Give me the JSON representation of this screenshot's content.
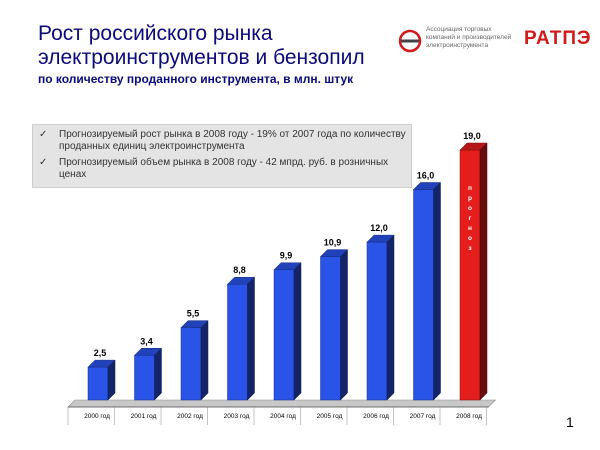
{
  "header": {
    "title": "Рост российского рынка электроинструментов и бензопил",
    "subtitle": "по количеству проданного инструмента, в млн. штук"
  },
  "logo": {
    "text": "Ассоциация торговых компаний и производителей электроинструмента",
    "brand": "РАТПЭ"
  },
  "notes": [
    "Прогнозируемый рост рынка в 2008 году - 19% от 2007 года по количеству проданных единиц электроинструмента",
    "Прогнозируемый объем рынка в 2008 году - 42 мпрд. руб.  в розничных ценах"
  ],
  "page_number": "1",
  "colors": {
    "bar": "#2a53e8",
    "highlight": "#e41d1d",
    "title": "#0a0a7a"
  },
  "chart_data": {
    "type": "bar",
    "categories": [
      "2000 год",
      "2001 год",
      "2002 год",
      "2003 год",
      "2004 год",
      "2005 год",
      "2006 год",
      "2007 год",
      "2008 год"
    ],
    "values": [
      2.5,
      3.4,
      5.5,
      8.8,
      9.9,
      10.9,
      12.0,
      16.0,
      19.0
    ],
    "value_labels": [
      "2,5",
      "3,4",
      "5,5",
      "8,8",
      "9,9",
      "10,9",
      "12,0",
      "16,0",
      "19,0"
    ],
    "highlight_index": 8,
    "highlight_text": "прогноз",
    "ylim": [
      0,
      19
    ],
    "grid": false,
    "legend": "none"
  }
}
